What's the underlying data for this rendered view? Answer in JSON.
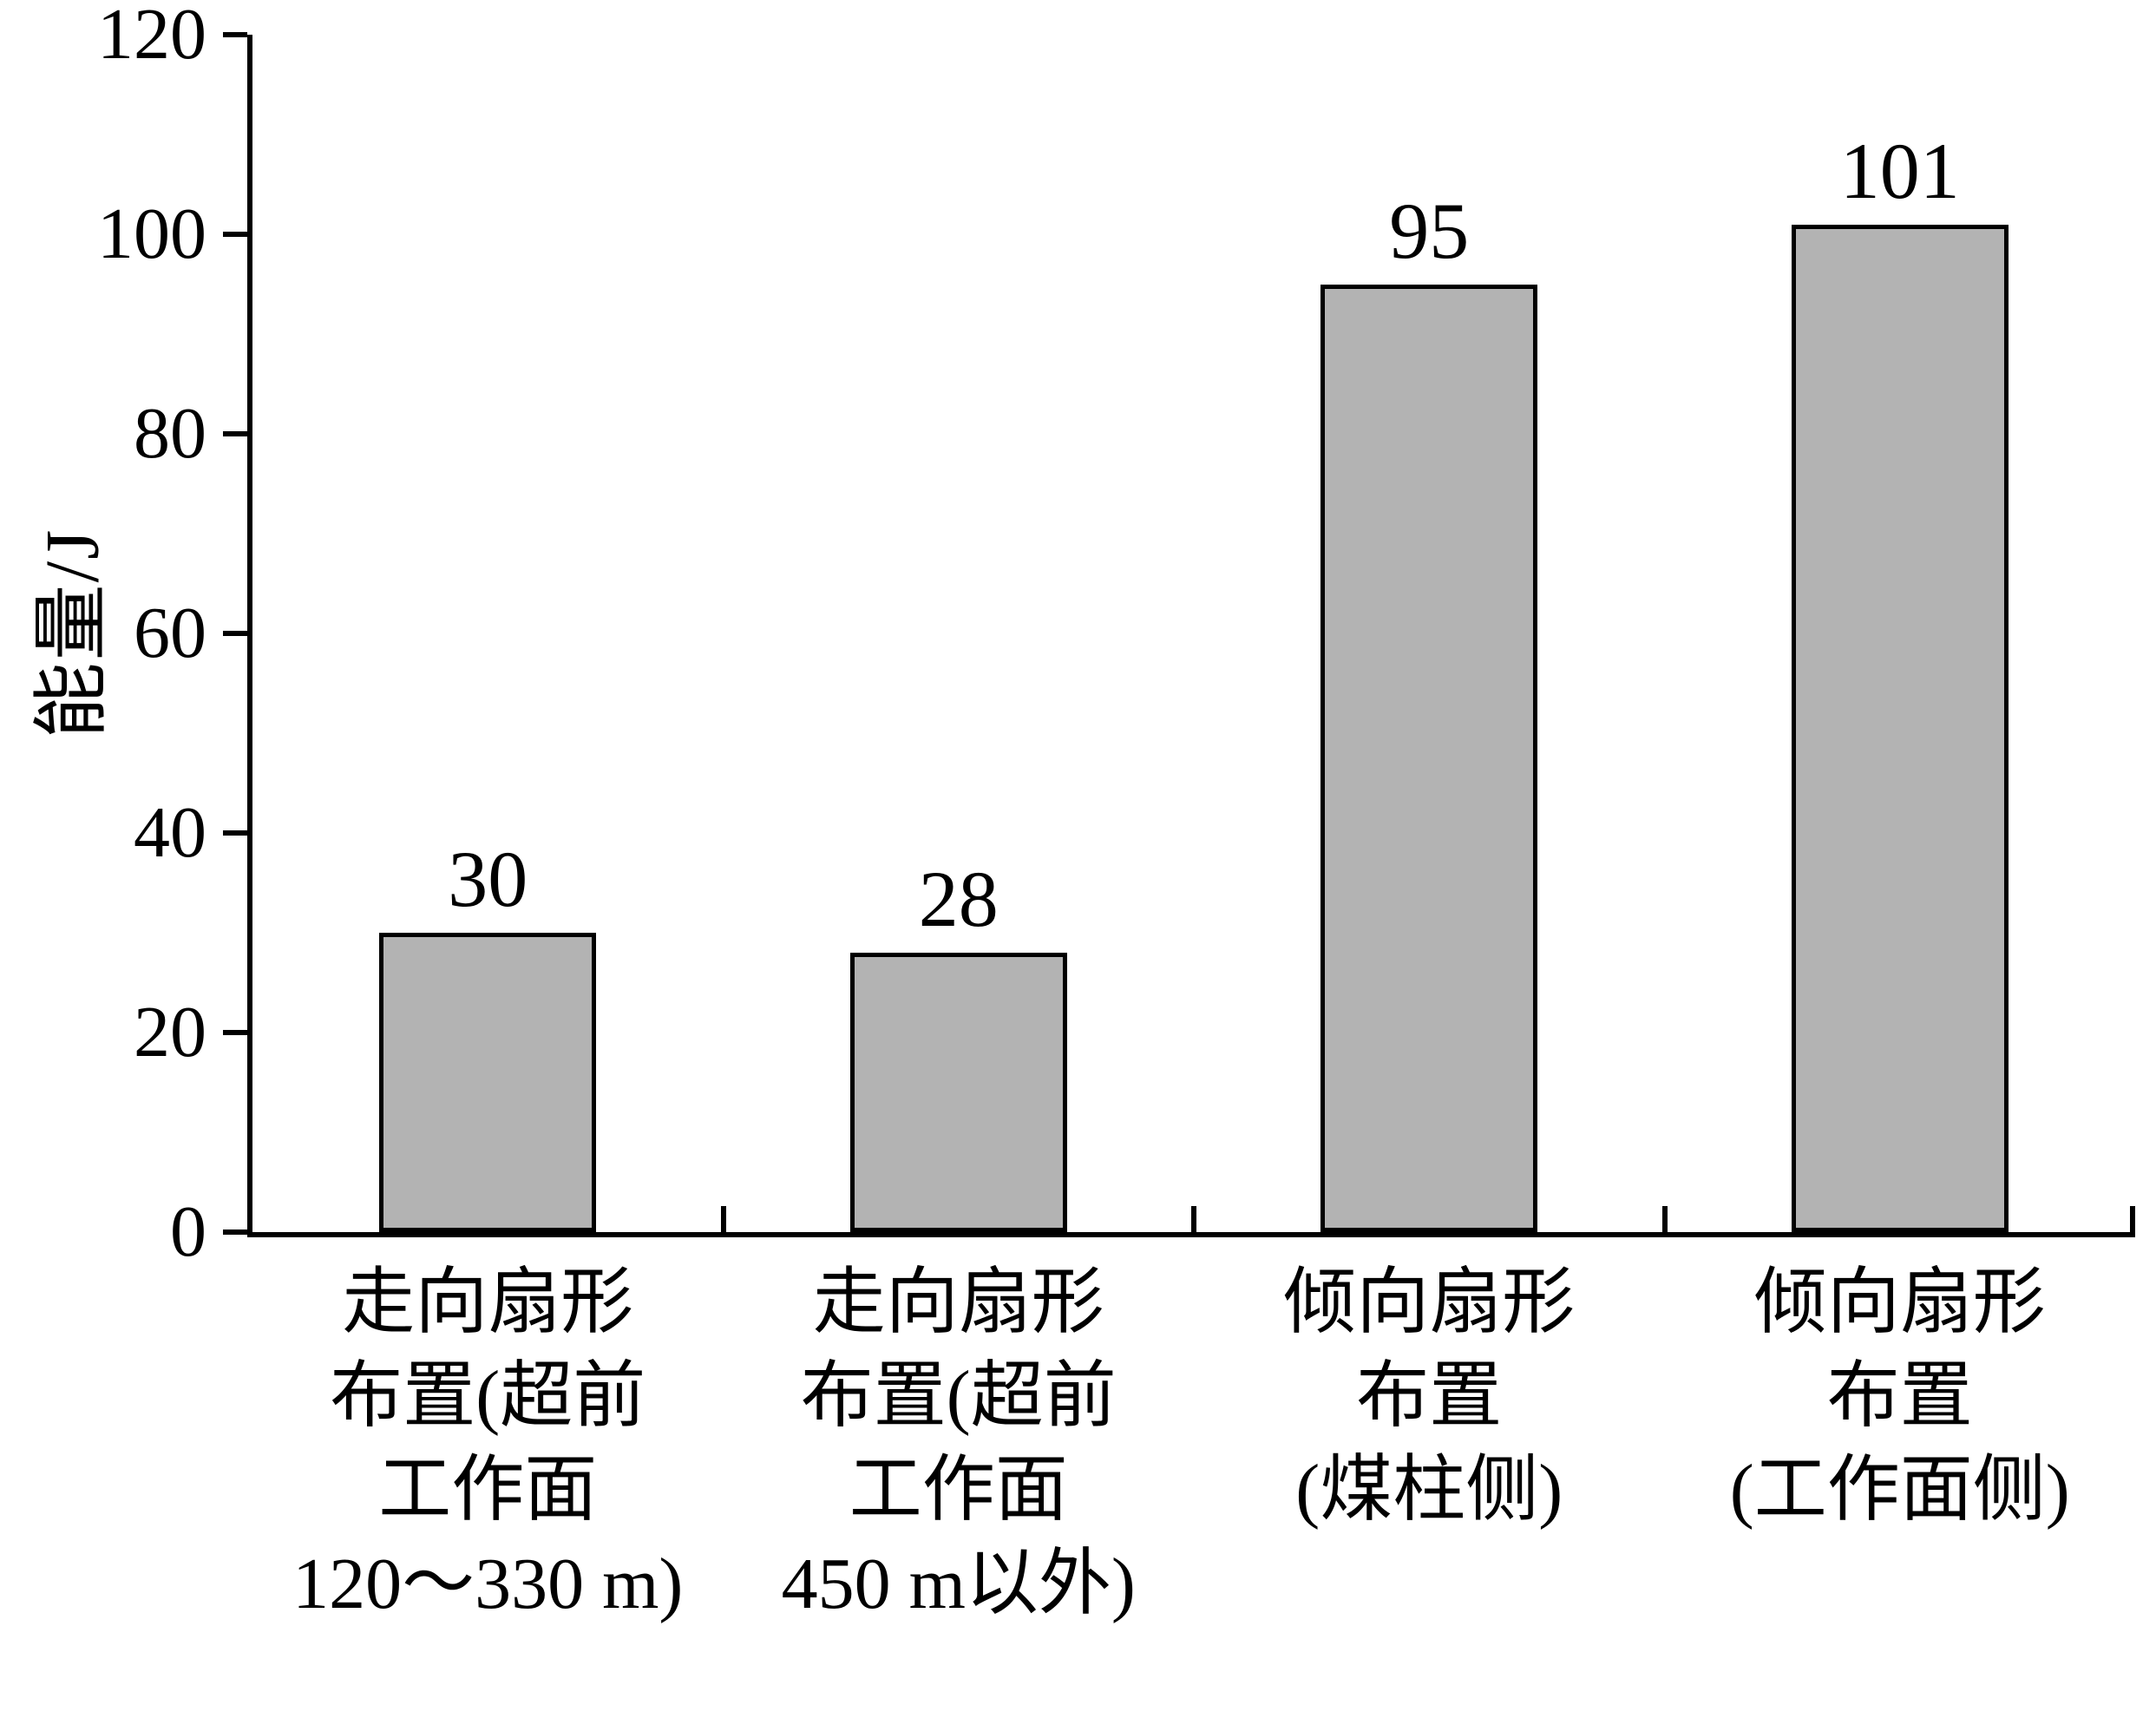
{
  "chart_data": {
    "type": "bar",
    "title": "",
    "xlabel": "",
    "ylabel": "能量/J",
    "ylim": [
      0,
      120
    ],
    "yticks": [
      0,
      20,
      40,
      60,
      80,
      100,
      120
    ],
    "grid": false,
    "legend": null,
    "categories": [
      "走向扇形布置(超前工作面120～330 m)",
      "走向扇形布置(超前工作面450 m以外)",
      "倾向扇形布置(煤柱侧)",
      "倾向扇形布置(工作面侧)"
    ],
    "category_lines": [
      [
        "走向扇形",
        "布置(超前",
        "工作面",
        "120～330 m)"
      ],
      [
        "走向扇形",
        "布置(超前",
        "工作面",
        "450 m以外)"
      ],
      [
        "倾向扇形",
        "布置",
        "(煤柱侧)"
      ],
      [
        "倾向扇形",
        "布置",
        "(工作面侧)"
      ]
    ],
    "values": [
      30,
      28,
      95,
      101
    ],
    "value_labels": [
      "30",
      "28",
      "95",
      "101"
    ],
    "colors": {
      "bar_fill": "#b3b3b3",
      "bar_border": "#000000",
      "axis": "#000000",
      "background": "#ffffff",
      "text": "#000000"
    }
  }
}
